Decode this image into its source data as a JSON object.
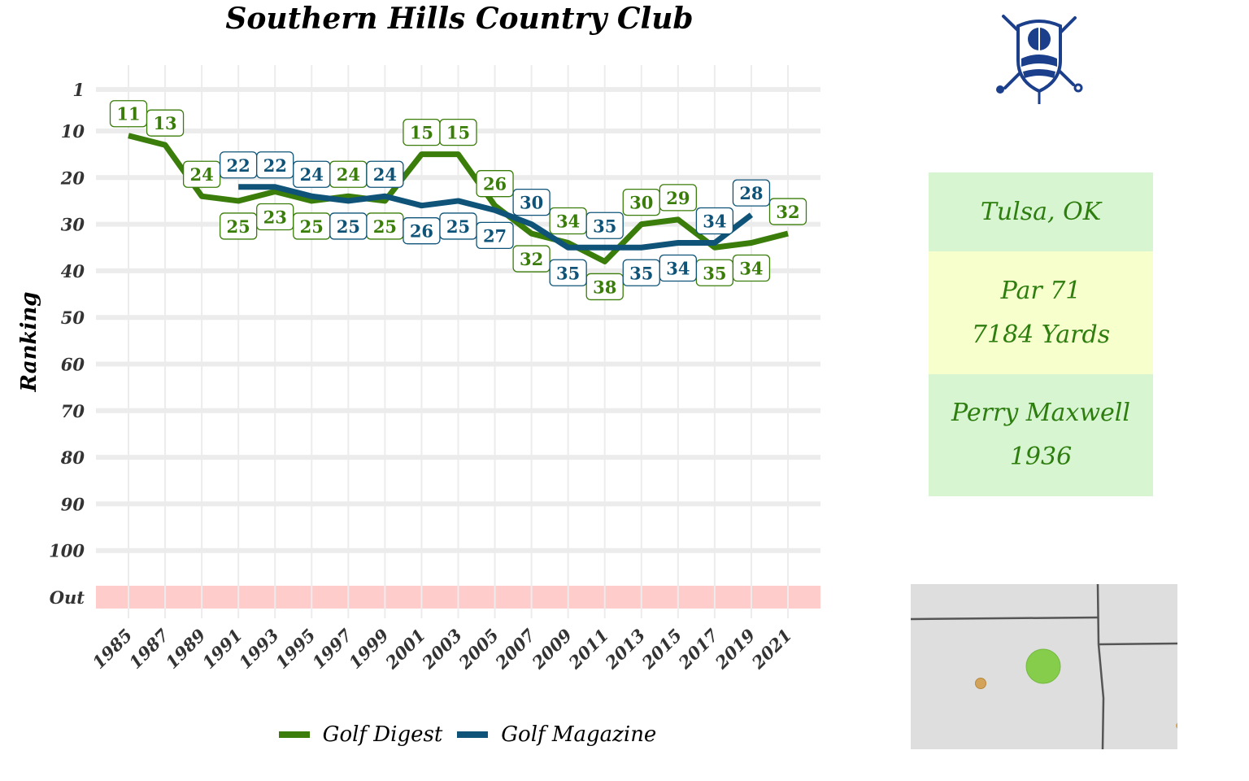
{
  "title": "Southern Hills Country Club",
  "info": {
    "location": "Tulsa, OK",
    "par": "Par 71",
    "yards": "7184 Yards",
    "designer": "Perry Maxwell",
    "year": "1936"
  },
  "colors": {
    "golf_digest": "#3a7d0a",
    "golf_magazine": "#0f5478",
    "out_band": "#ffcccc",
    "box_green": "#d6f5d0",
    "box_yellow": "#f7ffcc",
    "map_bg": "#dedede"
  },
  "map_icon": "state-border-map",
  "logo_icon": "club-crest-icon",
  "chart_data": {
    "type": "line",
    "title": "Southern Hills Country Club",
    "xlabel": "",
    "ylabel": "Ranking",
    "x_ticks": [
      "1985",
      "1987",
      "1989",
      "1991",
      "1993",
      "1995",
      "1997",
      "1999",
      "2001",
      "2003",
      "2005",
      "2007",
      "2009",
      "2011",
      "2013",
      "2015",
      "2017",
      "2019",
      "2021"
    ],
    "y_ticks": [
      "1",
      "10",
      "20",
      "30",
      "40",
      "50",
      "60",
      "70",
      "80",
      "90",
      "100",
      "Out"
    ],
    "y_reversed": true,
    "ylim": [
      1,
      100
    ],
    "grid": true,
    "legend_position": "bottom",
    "series": [
      {
        "name": "Golf Digest",
        "x": [
          1985,
          1987,
          1989,
          1991,
          1993,
          1995,
          1997,
          1999,
          2001,
          2003,
          2005,
          2007,
          2009,
          2011,
          2013,
          2015,
          2017,
          2019,
          2021
        ],
        "values": [
          11,
          13,
          24,
          25,
          23,
          25,
          24,
          25,
          15,
          15,
          26,
          32,
          34,
          38,
          30,
          29,
          35,
          34,
          32
        ]
      },
      {
        "name": "Golf Magazine",
        "x": [
          1991,
          1993,
          1995,
          1997,
          1999,
          2001,
          2003,
          2005,
          2007,
          2009,
          2011,
          2013,
          2015,
          2017,
          2019
        ],
        "values": [
          22,
          22,
          24,
          25,
          24,
          26,
          25,
          27,
          30,
          35,
          35,
          35,
          34,
          34,
          28
        ]
      }
    ]
  }
}
